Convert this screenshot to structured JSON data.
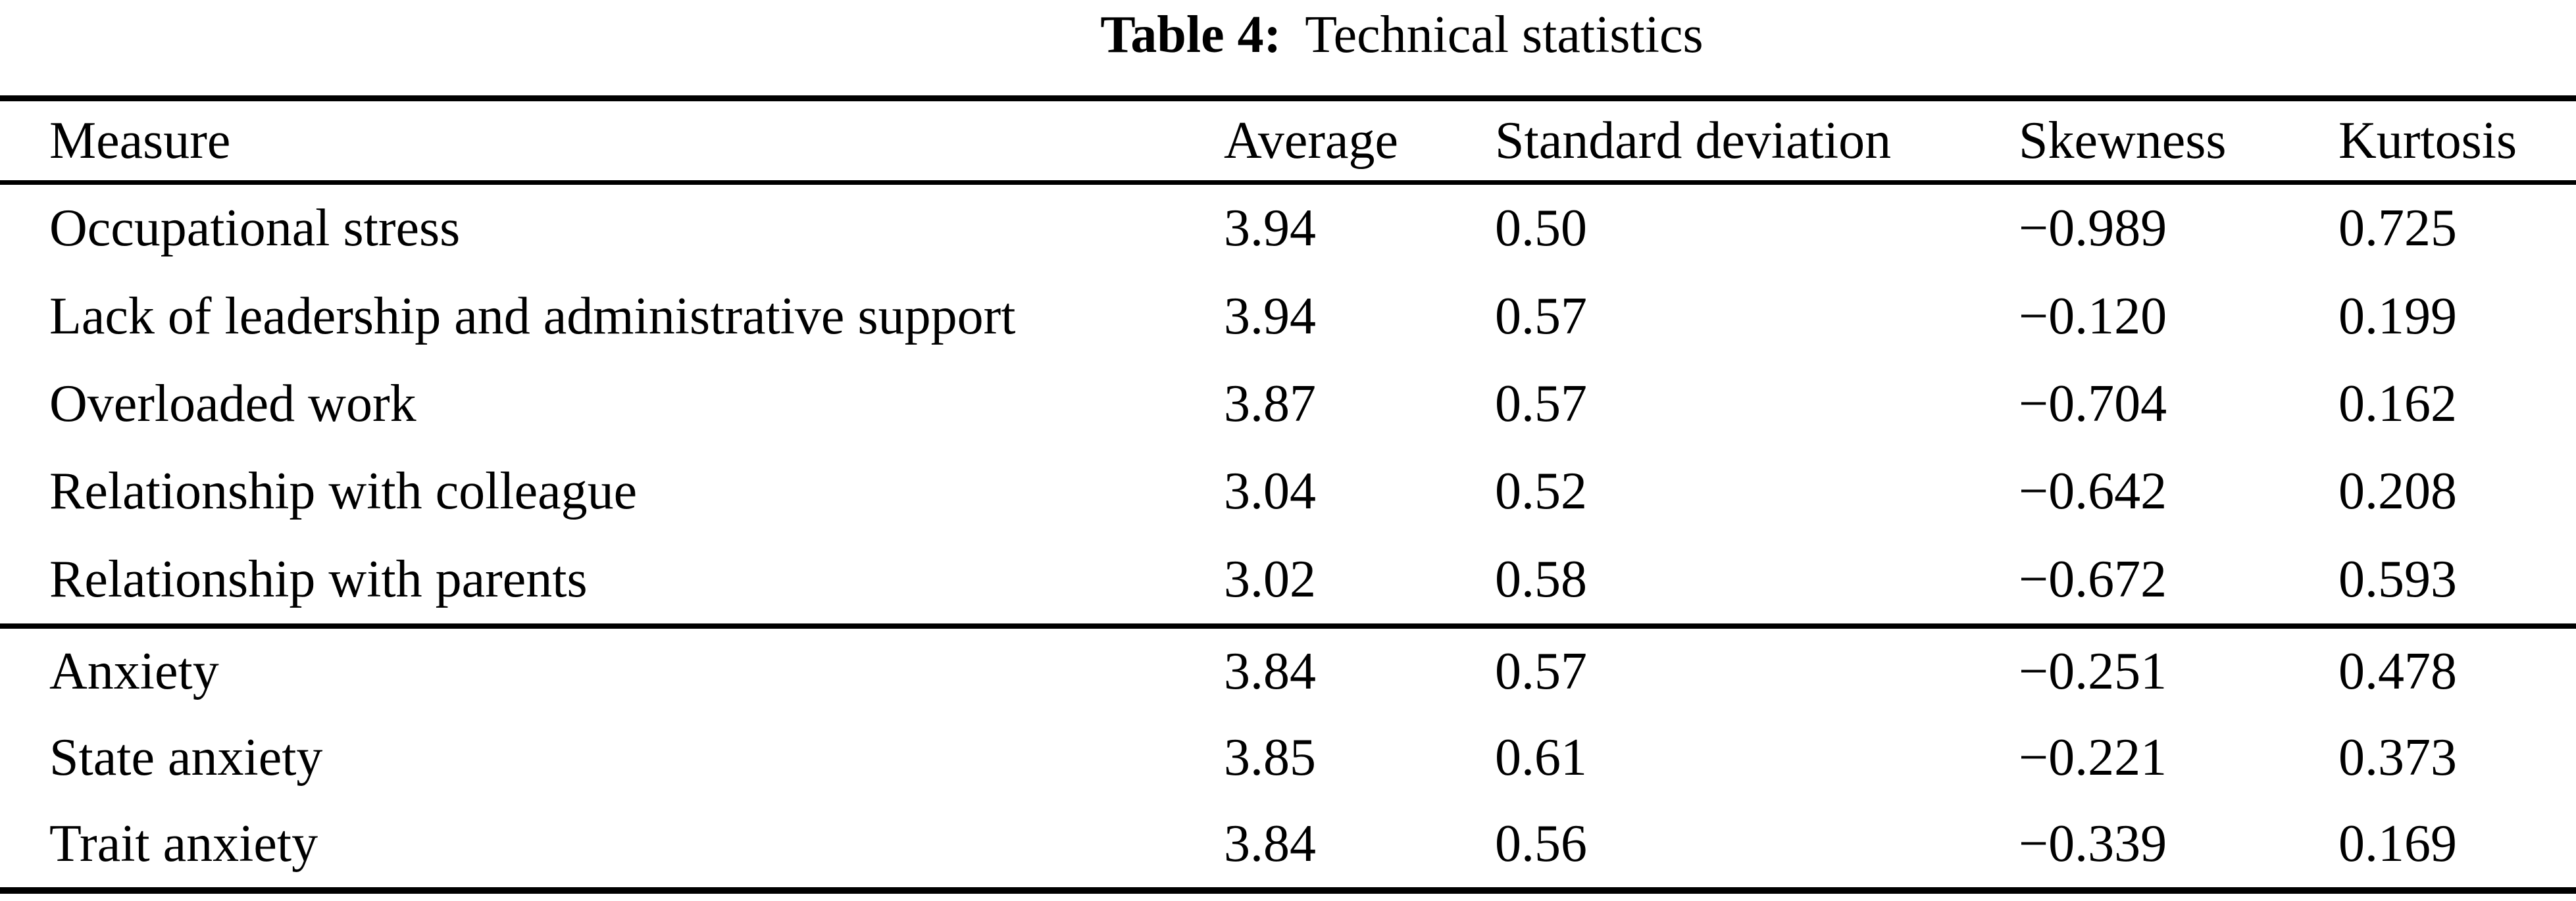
{
  "caption": {
    "label": "Table 4:",
    "title": "Technical statistics"
  },
  "table": {
    "columns": [
      "Measure",
      "Average",
      "Standard deviation",
      "Skewness",
      "Kurtosis"
    ],
    "sections": [
      {
        "rows": [
          {
            "measure": "Occupational stress",
            "average": "3.94",
            "std": "0.50",
            "skewness": "−0.989",
            "kurtosis": "0.725"
          },
          {
            "measure": "Lack of leadership and administrative support",
            "average": "3.94",
            "std": "0.57",
            "skewness": "−0.120",
            "kurtosis": "0.199"
          },
          {
            "measure": "Overloaded work",
            "average": "3.87",
            "std": "0.57",
            "skewness": "−0.704",
            "kurtosis": "0.162"
          },
          {
            "measure": "Relationship with colleague",
            "average": "3.04",
            "std": "0.52",
            "skewness": "−0.642",
            "kurtosis": "0.208"
          },
          {
            "measure": "Relationship with parents",
            "average": "3.02",
            "std": "0.58",
            "skewness": "−0.672",
            "kurtosis": "0.593"
          }
        ]
      },
      {
        "rows": [
          {
            "measure": "Anxiety",
            "average": "3.84",
            "std": "0.57",
            "skewness": "−0.251",
            "kurtosis": "0.478"
          },
          {
            "measure": "State anxiety",
            "average": "3.85",
            "std": "0.61",
            "skewness": "−0.221",
            "kurtosis": "0.373"
          },
          {
            "measure": "Trait anxiety",
            "average": "3.84",
            "std": "0.56",
            "skewness": "−0.339",
            "kurtosis": "0.169"
          }
        ]
      }
    ]
  },
  "colors": {
    "text": "#000000",
    "background": "#ffffff",
    "rule": "#000000"
  }
}
